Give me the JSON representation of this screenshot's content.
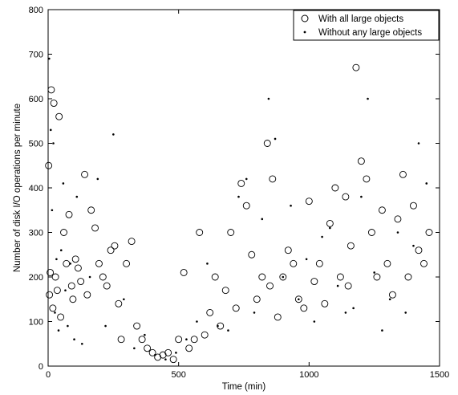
{
  "chart_data": {
    "type": "scatter",
    "title": "",
    "xlabel": "Time (min)",
    "ylabel": "Number of disk I/O operations per minute",
    "xlim": [
      0,
      1500
    ],
    "ylim": [
      0,
      800
    ],
    "xticks": [
      0,
      500,
      1000,
      1500
    ],
    "yticks": [
      0,
      100,
      200,
      300,
      400,
      500,
      600,
      700,
      800
    ],
    "grid": false,
    "legend_position": "top-right",
    "series": [
      {
        "name": "With all large objects",
        "marker": "open-circle",
        "color": "#000000",
        "x": [
          2,
          5,
          8,
          12,
          18,
          22,
          28,
          35,
          42,
          48,
          60,
          70,
          80,
          90,
          95,
          105,
          115,
          125,
          140,
          150,
          165,
          180,
          195,
          210,
          225,
          240,
          255,
          270,
          280,
          300,
          320,
          340,
          360,
          380,
          400,
          420,
          440,
          460,
          480,
          500,
          520,
          540,
          560,
          580,
          600,
          620,
          640,
          660,
          680,
          700,
          720,
          740,
          760,
          780,
          800,
          820,
          840,
          850,
          860,
          880,
          900,
          920,
          940,
          960,
          980,
          1000,
          1020,
          1040,
          1060,
          1080,
          1100,
          1120,
          1140,
          1150,
          1160,
          1180,
          1200,
          1220,
          1240,
          1260,
          1280,
          1300,
          1320,
          1340,
          1360,
          1380,
          1400,
          1420,
          1440,
          1460
        ],
        "y": [
          450,
          160,
          210,
          620,
          130,
          590,
          200,
          170,
          560,
          110,
          300,
          230,
          340,
          180,
          150,
          240,
          220,
          190,
          430,
          160,
          350,
          310,
          230,
          200,
          180,
          260,
          270,
          140,
          60,
          230,
          280,
          90,
          60,
          40,
          30,
          20,
          25,
          30,
          15,
          60,
          210,
          40,
          60,
          300,
          70,
          120,
          200,
          90,
          170,
          300,
          130,
          410,
          360,
          250,
          150,
          200,
          500,
          180,
          420,
          110,
          200,
          260,
          230,
          150,
          130,
          370,
          190,
          230,
          140,
          320,
          400,
          200,
          380,
          180,
          270,
          670,
          460,
          420,
          300,
          200,
          350,
          230,
          160,
          330,
          430,
          200,
          360,
          260,
          230,
          300
        ]
      },
      {
        "name": "Without any large objects",
        "marker": "dot",
        "color": "#000000",
        "x": [
          4,
          10,
          15,
          20,
          26,
          32,
          40,
          50,
          58,
          66,
          75,
          85,
          100,
          110,
          130,
          160,
          190,
          220,
          250,
          290,
          330,
          370,
          410,
          450,
          490,
          530,
          570,
          610,
          650,
          690,
          730,
          760,
          790,
          820,
          845,
          870,
          900,
          930,
          960,
          990,
          1020,
          1050,
          1080,
          1110,
          1140,
          1170,
          1200,
          1225,
          1250,
          1280,
          1310,
          1340,
          1370,
          1400,
          1420,
          1450
        ],
        "y": [
          690,
          530,
          350,
          500,
          120,
          240,
          80,
          260,
          410,
          170,
          90,
          230,
          60,
          380,
          50,
          200,
          420,
          90,
          520,
          150,
          40,
          70,
          25,
          15,
          30,
          60,
          100,
          230,
          90,
          80,
          380,
          420,
          120,
          330,
          600,
          510,
          200,
          360,
          150,
          240,
          100,
          290,
          310,
          180,
          120,
          130,
          380,
          600,
          210,
          80,
          150,
          300,
          120,
          270,
          500,
          410
        ]
      }
    ]
  }
}
